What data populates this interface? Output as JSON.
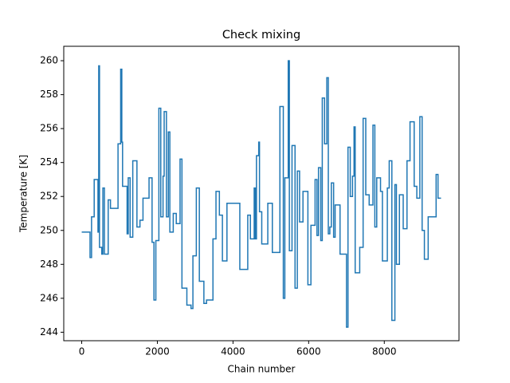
{
  "chart_data": {
    "type": "line",
    "title": "Check mixing",
    "x_label": "Chain number",
    "y_label": "Temperature [K]",
    "drawstyle": "steps-post",
    "color": "#1f77b4",
    "xlim": [
      -475,
      9975
    ],
    "ylim": [
      243.5,
      260.85
    ],
    "xticks": [
      0,
      2000,
      4000,
      6000,
      8000
    ],
    "yticks": [
      244,
      246,
      248,
      250,
      252,
      254,
      256,
      258,
      260
    ],
    "x": [
      0,
      220,
      260,
      330,
      430,
      450,
      470,
      530,
      560,
      600,
      700,
      760,
      960,
      1030,
      1060,
      1080,
      1200,
      1230,
      1280,
      1350,
      1460,
      1540,
      1620,
      1780,
      1860,
      1910,
      1960,
      2040,
      2090,
      2150,
      2180,
      2240,
      2290,
      2330,
      2420,
      2500,
      2600,
      2650,
      2780,
      2890,
      2940,
      3030,
      3110,
      3230,
      3300,
      3470,
      3550,
      3640,
      3720,
      3840,
      4180,
      4390,
      4460,
      4560,
      4590,
      4620,
      4680,
      4700,
      4760,
      4920,
      5040,
      5240,
      5330,
      5370,
      5460,
      5490,
      5560,
      5640,
      5700,
      5760,
      5850,
      5980,
      6060,
      6170,
      6220,
      6260,
      6320,
      6360,
      6420,
      6480,
      6520,
      6560,
      6600,
      6660,
      6700,
      6830,
      7000,
      7040,
      7100,
      7160,
      7200,
      7230,
      7350,
      7440,
      7510,
      7600,
      7700,
      7750,
      7800,
      7900,
      7950,
      8080,
      8130,
      8200,
      8280,
      8320,
      8400,
      8500,
      8600,
      8680,
      8790,
      8860,
      8940,
      9000,
      9060,
      9160,
      9370,
      9420,
      9500
    ],
    "values": [
      249.9,
      248.4,
      250.8,
      253.0,
      249.9,
      259.7,
      249.0,
      248.6,
      252.5,
      248.6,
      251.8,
      251.3,
      255.1,
      259.5,
      255.2,
      252.6,
      249.8,
      253.1,
      249.6,
      254.1,
      250.2,
      250.6,
      251.9,
      253.1,
      249.3,
      245.9,
      249.4,
      257.2,
      250.8,
      253.2,
      257.0,
      250.8,
      255.8,
      249.9,
      251.0,
      250.4,
      254.2,
      246.6,
      245.6,
      245.4,
      248.5,
      252.5,
      247.0,
      245.7,
      245.9,
      249.5,
      252.3,
      250.9,
      248.2,
      251.6,
      247.7,
      250.9,
      249.5,
      252.5,
      249.5,
      254.4,
      255.2,
      251.1,
      249.2,
      251.6,
      248.7,
      257.3,
      246.0,
      253.1,
      260.0,
      248.8,
      255.0,
      246.6,
      253.5,
      250.5,
      252.3,
      246.8,
      250.3,
      253.0,
      249.7,
      253.7,
      249.4,
      257.8,
      255.1,
      259.0,
      249.8,
      250.2,
      252.8,
      249.6,
      251.5,
      248.6,
      244.3,
      254.9,
      252.0,
      253.2,
      256.1,
      247.5,
      249.0,
      256.6,
      252.1,
      251.5,
      256.2,
      250.2,
      253.1,
      252.3,
      248.2,
      252.5,
      254.1,
      244.7,
      252.7,
      248.0,
      252.1,
      250.1,
      254.1,
      256.4,
      252.6,
      251.9,
      256.7,
      250.0,
      248.3,
      250.8,
      253.3,
      251.9,
      251.9
    ]
  }
}
